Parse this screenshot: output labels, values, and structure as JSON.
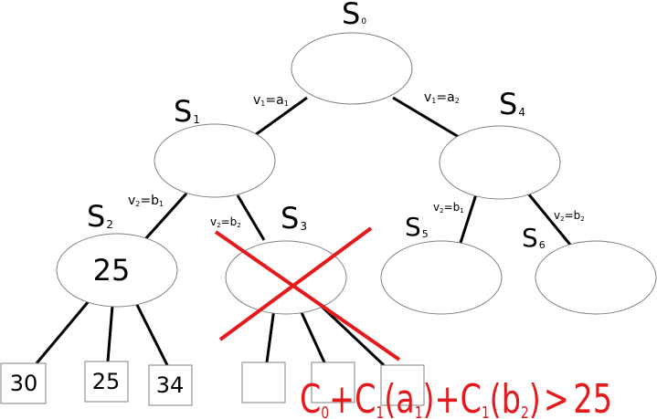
{
  "nodes": {
    "s0": {
      "letter": "S",
      "index": "0"
    },
    "s1": {
      "letter": "S",
      "index": "1"
    },
    "s2": {
      "letter": "S",
      "index": "2",
      "value": "25"
    },
    "s3": {
      "letter": "S",
      "index": "3"
    },
    "s4": {
      "letter": "S",
      "index": "4"
    },
    "s5": {
      "letter": "S",
      "index": "5"
    },
    "s6": {
      "letter": "S",
      "index": "6"
    }
  },
  "edges": {
    "s0_s1": {
      "var": "v",
      "var_index": "1",
      "op": "=",
      "val": "a",
      "val_index": "1"
    },
    "s0_s4": {
      "var": "v",
      "var_index": "1",
      "op": "=",
      "val": "a",
      "val_index": "2"
    },
    "s1_s2": {
      "var": "v",
      "var_index": "2",
      "op": "=",
      "val": "b",
      "val_index": "1"
    },
    "s1_s3": {
      "var": "v",
      "var_index": "2",
      "op": "=",
      "val": "b",
      "val_index": "2"
    },
    "s4_s5": {
      "var": "v",
      "var_index": "2",
      "op": "=",
      "val": "b",
      "val_index": "1"
    },
    "s4_s6": {
      "var": "v",
      "var_index": "2",
      "op": "=",
      "val": "b",
      "val_index": "2"
    }
  },
  "leaves": [
    "30",
    "25",
    "34",
    "",
    "",
    ""
  ],
  "pruned_node": "s3",
  "bound_formula": {
    "c0": "C",
    "c0_sub": "0",
    "plus1": "+",
    "c1": "C",
    "c1_sub": "1",
    "arg1_open": "(",
    "arg1": "a",
    "arg1_sub": "1",
    "arg1_close": ")",
    "plus2": "+",
    "c2": "C",
    "c2_sub": "1",
    "arg2_open": "(",
    "arg2": "b",
    "arg2_sub": "2",
    "arg2_close": ")",
    "op": ">",
    "bound": "25"
  },
  "colors": {
    "node_stroke": "#808080",
    "edge": "#000000",
    "cross": "#e41a1c",
    "formula": "#e41a1c"
  }
}
